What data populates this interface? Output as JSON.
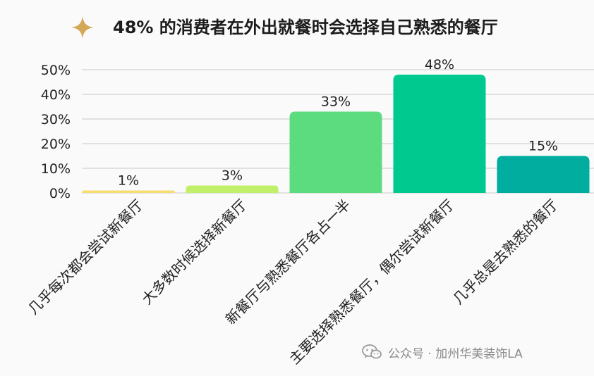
{
  "header": {
    "title": "48% 的消费者在外出就餐时会选择自己熟悉的餐厅",
    "icon": "sparkle-icon",
    "icon_color": "#d4a856"
  },
  "chart_data": {
    "type": "bar",
    "title": "48% 的消费者在外出就餐时会选择自己熟悉的餐厅",
    "categories": [
      "几乎每次都会尝试新餐厅",
      "大多数时候选择新餐厅",
      "新餐厅与熟悉餐厅各占一半",
      "主要选择熟悉餐厅，偶尔尝试新餐厅",
      "几乎总是去熟悉的餐厅"
    ],
    "values": [
      1,
      3,
      33,
      48,
      15
    ],
    "value_labels": [
      "1%",
      "3%",
      "33%",
      "48%",
      "15%"
    ],
    "colors": [
      "#f7dc6f",
      "#c2ef6a",
      "#5cdc7e",
      "#00c98f",
      "#00ad9f"
    ],
    "ylim": [
      0,
      50
    ],
    "yticks": [
      "0%",
      "10%",
      "20%",
      "30%",
      "40%",
      "50%"
    ],
    "xlabel": "",
    "ylabel": "",
    "grid": true,
    "legend": "none"
  },
  "watermark": {
    "icon": "wechat-icon",
    "text": "公众号 · 加州华美装饰LA"
  }
}
